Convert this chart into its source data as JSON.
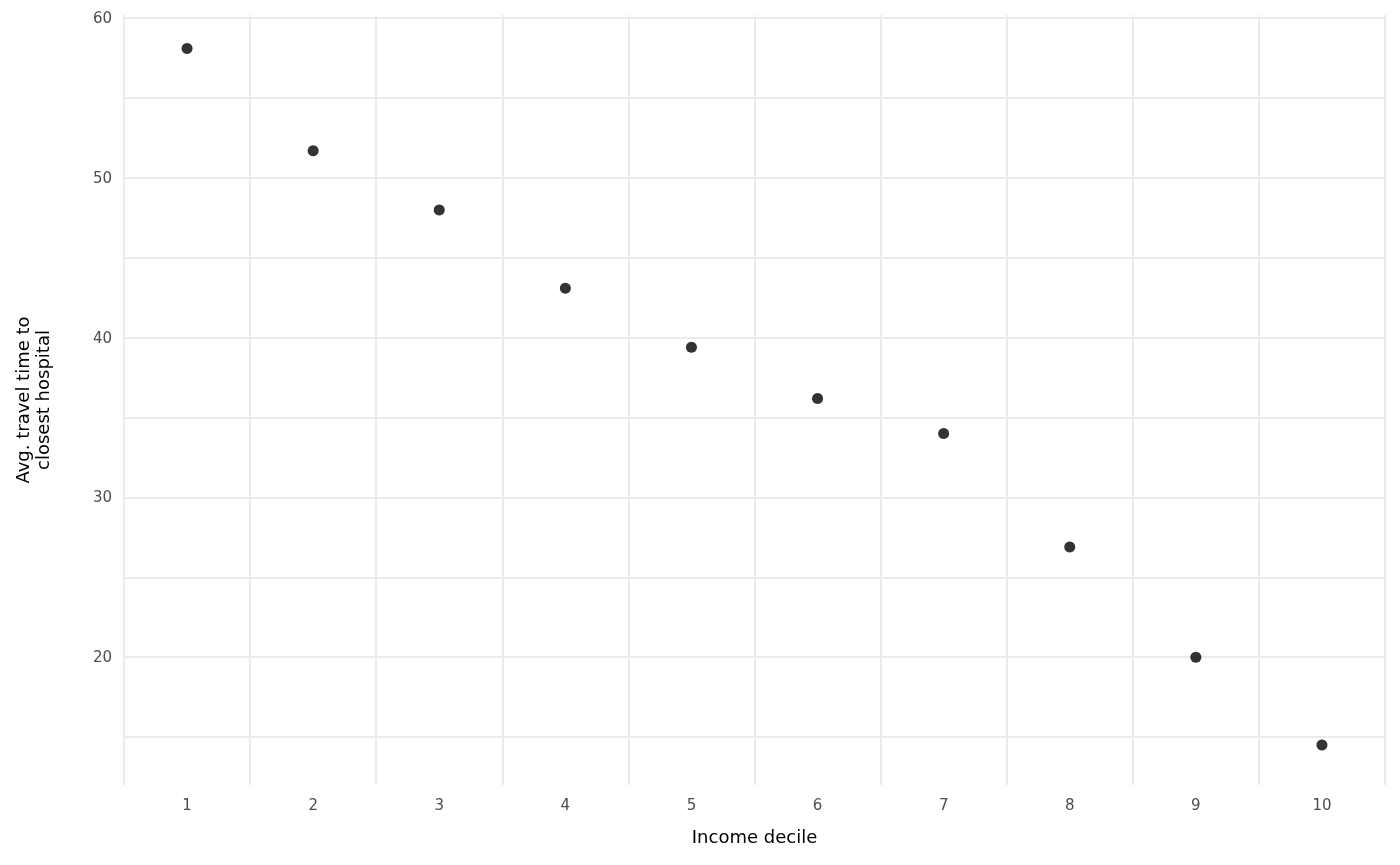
{
  "chart_data": {
    "type": "scatter",
    "xlabel": "Income decile",
    "ylabel": "Avg. travel time to\nclosest hospital",
    "categories": [
      "1",
      "2",
      "3",
      "4",
      "5",
      "6",
      "7",
      "8",
      "9",
      "10"
    ],
    "values": [
      58.1,
      51.7,
      48.0,
      43.1,
      39.4,
      36.2,
      34.0,
      26.9,
      20.0,
      14.5
    ],
    "color": "#000000",
    "marker": "circle",
    "ylim": [
      12,
      60.2
    ],
    "yticks": [
      {
        "value": 15,
        "label": null
      },
      20,
      {
        "value": 25,
        "label": null
      },
      30,
      {
        "value": 35,
        "label": null
      },
      40,
      {
        "value": 45,
        "label": null
      },
      50,
      {
        "value": 55,
        "label": null
      },
      60
    ],
    "grid": true
  }
}
